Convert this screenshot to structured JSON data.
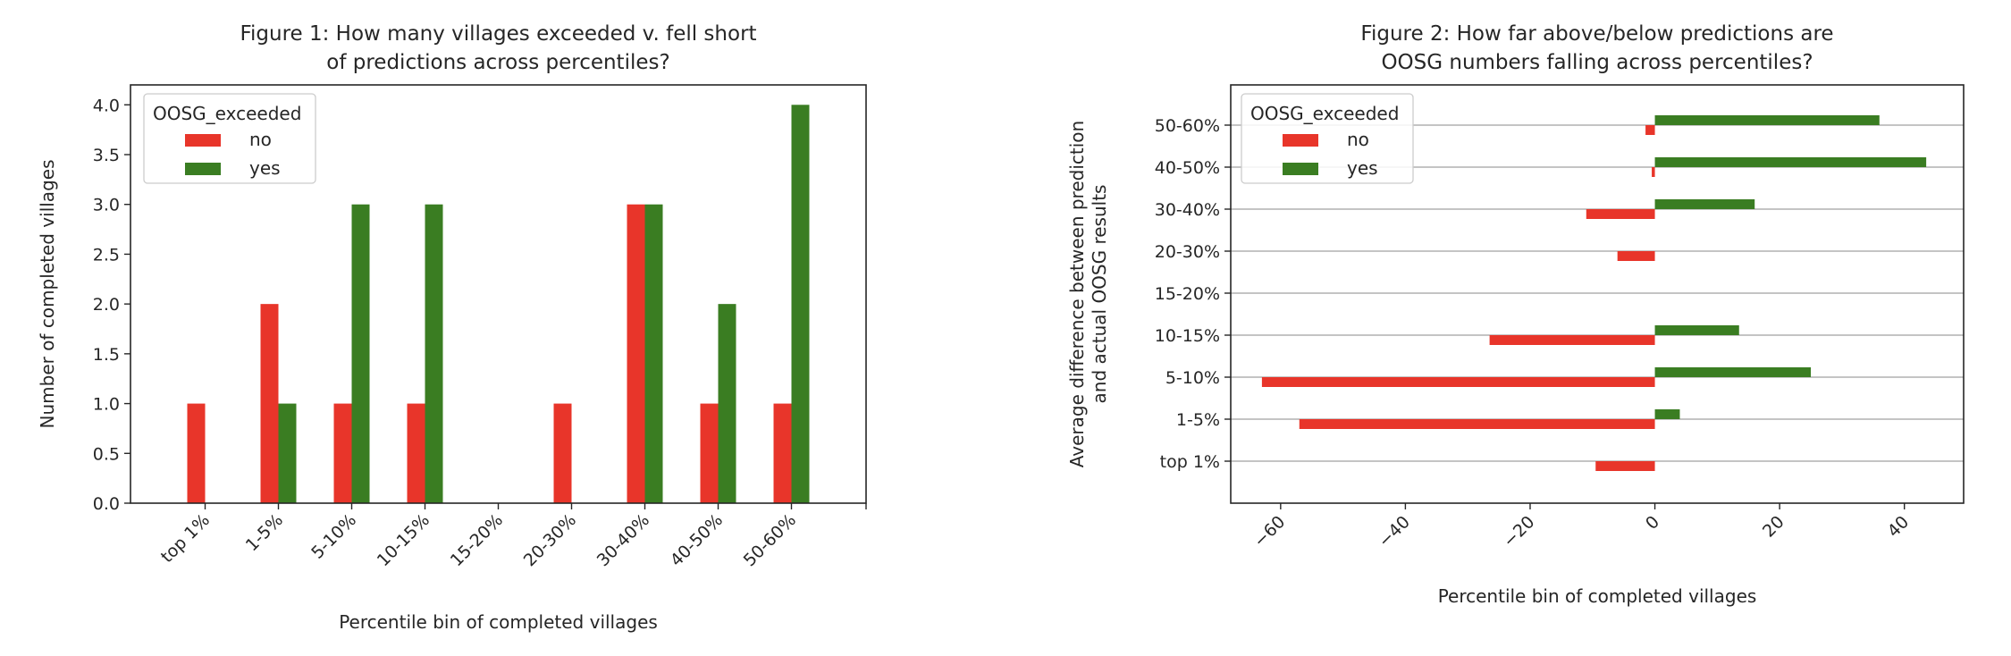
{
  "chart_data": [
    {
      "type": "bar",
      "title": "Figure 1: How many villages exceeded v. fell short\nof predictions across percentiles?",
      "xlabel": "Percentile bin of completed villages",
      "ylabel": "Number of completed villages",
      "categories": [
        "top 1%",
        "1-5%",
        "5-10%",
        "10-15%",
        "15-20%",
        "20-30%",
        "30-40%",
        "40-50%",
        "50-60%"
      ],
      "series": [
        {
          "name": "no",
          "color": "#e8352a",
          "values": [
            1,
            2,
            1,
            1,
            0,
            1,
            3,
            1,
            1
          ]
        },
        {
          "name": "yes",
          "color": "#3a7d22",
          "values": [
            0,
            1,
            3,
            3,
            0,
            0,
            3,
            2,
            4
          ]
        }
      ],
      "ylim": [
        0,
        4.2
      ],
      "yticks": [
        "0.0",
        "0.5",
        "1.0",
        "1.5",
        "2.0",
        "2.5",
        "3.0",
        "3.5",
        "4.0"
      ],
      "grid": false,
      "legend": {
        "title": "OOSG_exceeded",
        "position": "top-left"
      }
    },
    {
      "type": "bar",
      "orientation": "horizontal",
      "title": "Figure 2: How far above/below predictions are\nOOSG numbers falling across percentiles?",
      "xlabel": "Percentile bin of completed villages",
      "ylabel": "Average difference between prediction\nand actual OOSG results",
      "categories": [
        "top 1%",
        "1-5%",
        "5-10%",
        "10-15%",
        "15-20%",
        "20-30%",
        "30-40%",
        "40-50%",
        "50-60%"
      ],
      "series": [
        {
          "name": "no",
          "color": "#e8352a",
          "values": [
            -9.5,
            -57,
            -63,
            -26.5,
            0,
            -6,
            -11,
            -0.5,
            -1.5
          ]
        },
        {
          "name": "yes",
          "color": "#3a7d22",
          "values": [
            0,
            4,
            25,
            13.5,
            0,
            0,
            16,
            43.5,
            36
          ]
        }
      ],
      "xlim": [
        -68,
        49.5
      ],
      "xticks": [
        "−60",
        "−40",
        "−20",
        "0",
        "20",
        "40"
      ],
      "grid": true,
      "legend": {
        "title": "OOSG_exceeded",
        "position": "top-left"
      }
    }
  ]
}
